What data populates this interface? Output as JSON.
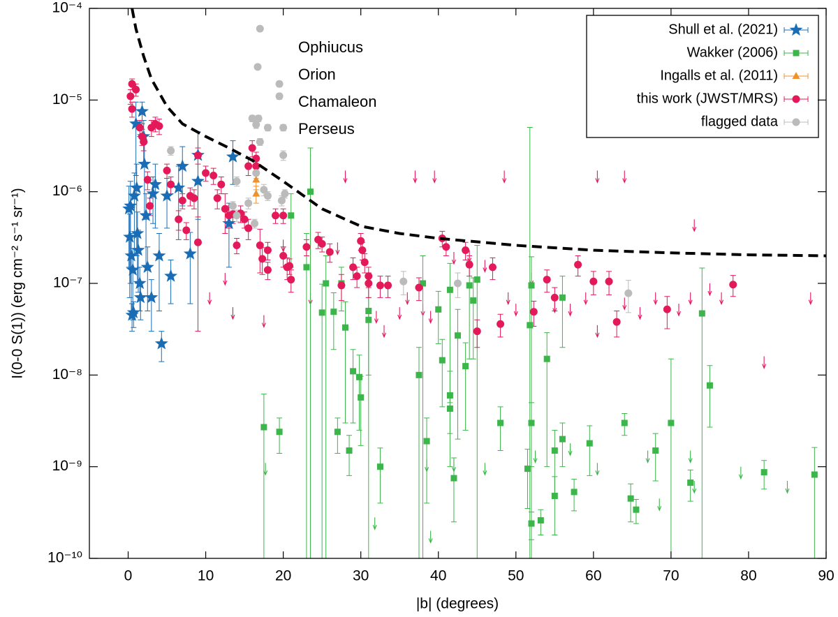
{
  "chart_data": {
    "type": "scatter",
    "x_label": "|b| (degrees)",
    "y_label": "I(0-0 S(1))  (erg cm⁻² s⁻¹ sr⁻¹)",
    "xlim": [
      -5,
      90
    ],
    "xticks": [
      0,
      10,
      20,
      30,
      40,
      50,
      60,
      70,
      80,
      90
    ],
    "ylim": [
      1e-10,
      0.0001
    ],
    "yticks": [
      {
        "value": 1e-10,
        "label": "10⁻¹⁰"
      },
      {
        "value": 1e-09,
        "label": "10⁻⁹"
      },
      {
        "value": 1e-08,
        "label": "10⁻⁸"
      },
      {
        "value": 1e-07,
        "label": "10⁻⁷"
      },
      {
        "value": 1e-06,
        "label": "10⁻⁶"
      },
      {
        "value": 1e-05,
        "label": "10⁻⁵"
      },
      {
        "value": 0.0001,
        "label": "10⁻⁴"
      }
    ],
    "ylog": true,
    "legend": "top-right",
    "series": [
      {
        "name": "Shull et al. (2021)",
        "color": "#1a6db5",
        "marker": "star",
        "x": [
          0.1,
          0.2,
          0.3,
          0.4,
          0.5,
          0.6,
          0.7,
          0.8,
          1.0,
          1.1,
          1.2,
          1.3,
          1.5,
          1.6,
          1.8,
          2.0,
          2.1,
          2.3,
          2.5,
          3.0,
          3.2,
          3.5,
          4.0,
          4.3,
          5.0,
          5.5,
          6.5,
          7.0,
          8.0,
          9.0,
          9.0,
          13.0,
          13.5
        ],
        "values": [
          6.5e-07,
          3.2e-07,
          7e-07,
          2e-07,
          4.5e-08,
          1.4e-07,
          4.8e-08,
          9e-07,
          5.5e-06,
          1.1e-06,
          3.5e-07,
          2.3e-07,
          1e-07,
          7e-08,
          7.5e-06,
          4e-06,
          2e-06,
          5.5e-07,
          1.5e-07,
          7e-08,
          9.5e-07,
          1.2e-06,
          2e-07,
          2.2e-08,
          9e-07,
          1.2e-07,
          1.1e-06,
          1.9e-06,
          2.1e-07,
          1.3e-06,
          2.5e-06,
          4.5e-07,
          2.4e-06
        ],
        "errors": [
          5e-07,
          2.5e-07,
          6e-07,
          1.5e-07,
          1.5e-08,
          1e-07,
          1.5e-08,
          7e-07,
          4e-06,
          9e-07,
          2.5e-07,
          1.5e-07,
          5e-08,
          3e-08,
          2e-06,
          2e-06,
          1.5e-06,
          4e-07,
          1e-07,
          4e-08,
          5e-07,
          8e-07,
          1.5e-07,
          8e-09,
          5e-07,
          6e-08,
          8e-07,
          1.2e-06,
          1.5e-07,
          1e-06,
          2e-06,
          3e-07,
          1.2e-06
        ]
      },
      {
        "name": "Wakker (2006)",
        "color": "#3cb54a",
        "marker": "square",
        "x": [
          17.5,
          19.5,
          21,
          23,
          23.5,
          25,
          25.5,
          26.5,
          27,
          27.5,
          28,
          28.5,
          29,
          29.8,
          30,
          31,
          31,
          32.5,
          37.5,
          38,
          38.5,
          40,
          40.5,
          41.5,
          41.5,
          41.5,
          42,
          42.5,
          43.5,
          44,
          44.5,
          45,
          48,
          51.5,
          51.8,
          52,
          52,
          52,
          53.2,
          54,
          55,
          55,
          56,
          56,
          57.5,
          59.5,
          64,
          64.8,
          65.5,
          68,
          70,
          72.5,
          74,
          75,
          82,
          88.5
        ],
        "values": [
          2.7e-09,
          2.4e-09,
          5.5e-07,
          1.5e-07,
          1e-06,
          4.8e-08,
          1e-07,
          4.9e-08,
          2.4e-09,
          1e-07,
          3.3e-08,
          1.5e-09,
          1.1e-08,
          9.5e-09,
          5.7e-09,
          5e-08,
          4e-08,
          1e-09,
          1e-08,
          1e-07,
          1.9e-09,
          5.2e-08,
          1.45e-08,
          6e-09,
          8.5e-08,
          4.3e-09,
          7.5e-10,
          2.7e-08,
          1.25e-08,
          9.5e-08,
          6.5e-08,
          1.1e-07,
          3e-09,
          9.5e-10,
          3.5e-08,
          9.5e-08,
          3e-09,
          2.4e-10,
          2.6e-10,
          1.5e-08,
          1.5e-09,
          4.8e-10,
          2e-09,
          7e-08,
          5.3e-10,
          1.8e-09,
          3e-09,
          4.5e-10,
          3.4e-10,
          1.5e-09,
          3e-09,
          6.7e-10,
          4.7e-08,
          7.7e-09,
          8.7e-10,
          8.2e-10
        ],
        "errors": [
          3.5e-09,
          1e-09,
          4e-07,
          2e-07,
          2e-06,
          5e-08,
          1e-07,
          3e-08,
          1e-09,
          5e-08,
          3e-08,
          7e-10,
          8e-09,
          7e-09,
          4e-09,
          5e-08,
          3e-08,
          6e-10,
          1e-08,
          1e-07,
          1.5e-09,
          3e-08,
          1e-08,
          5e-09,
          8e-08,
          2e-09,
          5e-10,
          2.5e-08,
          1e-08,
          8e-08,
          5e-08,
          1.5e-07,
          1.5e-09,
          6e-10,
          5e-06,
          1e-07,
          2e-09,
          8e-11,
          8e-11,
          1.4e-08,
          1e-09,
          3e-10,
          1e-09,
          5e-08,
          2e-10,
          1e-09,
          8e-10,
          2e-10,
          1e-10,
          8e-10,
          1.2e-08,
          2.5e-10,
          1e-07,
          5e-09,
          3e-10,
          8e-10
        ],
        "upper_limits": {
          "x": [
            17.7,
            31.8,
            38.5,
            39,
            42,
            46,
            52.5,
            57,
            60.5,
            67,
            68.5,
            72.5,
            73,
            79,
            85
          ],
          "values": [
            1.1e-09,
            2.8e-10,
            1.2e-09,
            2e-10,
            1.2e-09,
            1.1e-09,
            1.5e-09,
            1.8e-09,
            1.1e-09,
            1.5e-09,
            4.5e-10,
            1.5e-09,
            7e-10,
            1e-09,
            7e-10
          ]
        }
      },
      {
        "name": "Ingalls et al. (2011)",
        "color": "#f0922c",
        "marker": "triangle",
        "x": [
          16.5,
          16.5
        ],
        "values": [
          1.35e-06,
          9.5e-07
        ],
        "errors": [
          3e-07,
          2e-07
        ]
      },
      {
        "name": "this work (JWST/MRS)",
        "color": "#e3195a",
        "marker": "circle",
        "x": [
          0.3,
          0.5,
          0.5,
          1,
          1.5,
          1.8,
          2,
          2.5,
          2.8,
          3,
          3.5,
          4,
          5,
          5.5,
          6.5,
          7,
          7.5,
          8,
          8.5,
          9,
          9,
          10,
          11,
          11.5,
          12,
          12.5,
          13,
          13.5,
          14,
          14.5,
          15,
          15.5,
          15.5,
          16,
          16.5,
          16.5,
          17,
          17.3,
          18,
          18,
          19,
          20,
          20,
          20.5,
          20.8,
          21,
          23,
          24.5,
          25,
          26,
          27.5,
          29,
          29.5,
          30,
          30.2,
          30.5,
          31,
          31,
          32.5,
          33.5,
          37.5,
          40.5,
          41,
          43.5,
          44,
          45,
          47,
          48,
          52.3,
          54,
          55,
          58,
          60,
          62,
          63,
          69.5,
          78
        ],
        "values": [
          1.1e-05,
          1.5e-05,
          8e-06,
          1.3e-05,
          5e-06,
          4e-06,
          3.5e-06,
          1.35e-06,
          7e-07,
          5e-06,
          5.5e-06,
          5.2e-06,
          1.7e-06,
          1.2e-06,
          5e-07,
          8e-07,
          3.8e-07,
          9e-07,
          8.5e-07,
          2.8e-07,
          2.5e-06,
          1.6e-06,
          1.5e-06,
          8.5e-07,
          1.2e-06,
          6.5e-07,
          5.5e-07,
          5.7e-07,
          2.6e-07,
          5.8e-07,
          5e-07,
          4e-07,
          1.9e-06,
          3e-06,
          2.3e-06,
          1.9e-06,
          2.6e-07,
          1.85e-07,
          2.3e-07,
          1.4e-07,
          5.5e-07,
          5.5e-07,
          2e-07,
          1.5e-07,
          1.55e-07,
          1.1e-07,
          2.5e-07,
          3e-07,
          2.7e-07,
          2.2e-07,
          9.5e-08,
          1.5e-07,
          1.2e-07,
          2.9e-07,
          2.3e-07,
          1.7e-07,
          1.2e-07,
          1e-07,
          9.5e-08,
          9.5e-08,
          9e-08,
          3.1e-07,
          2.5e-07,
          2.3e-07,
          1.6e-07,
          3e-08,
          1.5e-07,
          3.6e-08,
          4.9e-08,
          1.1e-07,
          7e-08,
          1.6e-07,
          1.05e-07,
          1.05e-07,
          3.8e-08,
          5.2e-08,
          9.7e-08
        ],
        "errors": [
          2e-06,
          2e-06,
          1.5e-06,
          2e-06,
          1e-06,
          8e-07,
          7e-07,
          3e-07,
          1.5e-07,
          1e-06,
          1e-06,
          1e-06,
          3e-07,
          2.5e-07,
          1.2e-07,
          1.5e-07,
          8e-08,
          2e-07,
          2e-07,
          2.5e-07,
          5e-07,
          3e-07,
          3e-07,
          2e-07,
          2.5e-07,
          3e-07,
          1.5e-07,
          1.2e-07,
          5e-08,
          1.2e-07,
          1e-07,
          1e-07,
          4e-07,
          6e-07,
          4e-07,
          4e-07,
          1.3e-07,
          6e-08,
          5e-08,
          3e-08,
          1e-07,
          1e-07,
          5e-08,
          4e-08,
          3e-08,
          3e-08,
          5e-08,
          6e-08,
          5e-08,
          5e-08,
          3e-08,
          4e-08,
          3e-08,
          6e-08,
          5e-08,
          4e-08,
          3e-08,
          3e-08,
          2.5e-08,
          2.5e-08,
          2.5e-08,
          6e-08,
          5e-08,
          5e-08,
          4e-08,
          1e-08,
          4e-08,
          1e-08,
          1.5e-08,
          3e-08,
          2e-08,
          4e-08,
          3e-08,
          3e-08,
          1.2e-08,
          2e-08,
          2.5e-08
        ],
        "upper_limits": {
          "x": [
            10.5,
            12.5,
            13.5,
            17.5,
            20,
            23.5,
            27,
            28,
            32,
            33,
            35,
            36,
            37,
            38,
            39,
            39.5,
            42,
            44,
            46,
            48.5,
            49,
            50,
            52,
            55,
            57,
            59,
            60.5,
            60.5,
            64,
            64,
            66,
            68,
            71,
            72.5,
            73,
            75,
            76.5,
            82,
            88
          ],
          "values": [
            8e-08,
            1.3e-07,
            5.5e-08,
            4.5e-08,
            3e-07,
            8e-08,
            2.8e-07,
            1.7e-06,
            5e-08,
            3.5e-08,
            5.5e-08,
            8e-08,
            1.7e-06,
            6e-08,
            5e-08,
            1.7e-06,
            2.2e-07,
            2.3e-07,
            1.8e-07,
            1.7e-06,
            8e-08,
            6e-08,
            1.3e-07,
            6.5e-08,
            6e-08,
            8e-08,
            1.7e-06,
            3.5e-08,
            1.7e-06,
            7e-08,
            5.5e-08,
            8e-08,
            6e-08,
            8e-08,
            5e-07,
            1e-07,
            8e-08,
            1.6e-08,
            8e-08
          ]
        }
      },
      {
        "name": "flagged data",
        "color": "#bbbbbb",
        "marker": "circle",
        "x": [
          5.5,
          14,
          13.5,
          14,
          15.5,
          16,
          16.3,
          16.5,
          16.7,
          17,
          16.8,
          16.5,
          17,
          17.5,
          18,
          18,
          19.5,
          19.5,
          20,
          20,
          20.2,
          19.8,
          35.5,
          42.5,
          64.5
        ],
        "values": [
          2.8e-06,
          1.3e-06,
          7e-07,
          5.5e-07,
          7.5e-07,
          6.3e-06,
          4.5e-07,
          1.6e-06,
          2.3e-05,
          6e-05,
          6.3e-06,
          5.4e-06,
          3.5e-06,
          1.05e-06,
          5e-06,
          9e-07,
          1.5e-05,
          1.1e-05,
          5e-06,
          2.5e-06,
          9.5e-07,
          8e-07,
          1.05e-07,
          1e-07,
          7.8e-08
        ],
        "errors": [
          3e-07,
          1.5e-07,
          8e-08,
          8e-08,
          1e-07,
          5e-07,
          5e-08,
          2e-07,
          1e-06,
          2e-06,
          5e-07,
          5e-07,
          3e-07,
          1.5e-07,
          4e-07,
          1e-07,
          1e-06,
          8e-07,
          4e-07,
          3e-07,
          1e-07,
          1e-07,
          3e-08,
          3e-08,
          3e-08
        ]
      }
    ],
    "curve": {
      "color": "#000000",
      "dashed": true,
      "x": [
        0.5,
        1,
        2,
        3,
        5,
        7,
        10,
        13,
        16,
        20,
        25,
        28,
        30,
        35,
        40,
        50,
        60,
        70,
        80,
        90
      ],
      "values": [
        0.0001,
        6e-05,
        3e-05,
        1.7e-05,
        8.5e-06,
        5.5e-06,
        4e-06,
        3e-06,
        2.2e-06,
        1.3e-06,
        6.5e-07,
        5e-07,
        4.2e-07,
        3.5e-07,
        3.1e-07,
        2.6e-07,
        2.3e-07,
        2.15e-07,
        2.05e-07,
        2e-07
      ]
    },
    "annotations": {
      "color": "#bbbbbb",
      "texts": [
        "Ophiucus",
        "Orion",
        "Chamaleon",
        "Perseus"
      ]
    }
  }
}
